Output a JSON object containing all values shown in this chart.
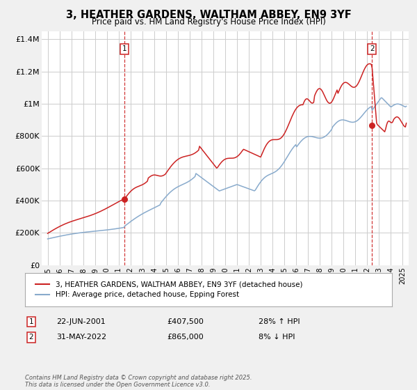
{
  "title": "3, HEATHER GARDENS, WALTHAM ABBEY, EN9 3YF",
  "subtitle": "Price paid vs. HM Land Registry's House Price Index (HPI)",
  "ylim": [
    0,
    1450000
  ],
  "yticks": [
    0,
    200000,
    400000,
    600000,
    800000,
    1000000,
    1200000,
    1400000
  ],
  "ytick_labels": [
    "£0",
    "£200K",
    "£400K",
    "£600K",
    "£800K",
    "£1M",
    "£1.2M",
    "£1.4M"
  ],
  "xlim_start": 1994.5,
  "xlim_end": 2025.5,
  "red_color": "#cc2222",
  "blue_color": "#88aacc",
  "marker1_x": 2001.47,
  "marker1_y": 407500,
  "marker2_x": 2022.41,
  "marker2_y": 865000,
  "sale1_date": "22-JUN-2001",
  "sale1_price": "£407,500",
  "sale1_hpi": "28% ↑ HPI",
  "sale2_date": "31-MAY-2022",
  "sale2_price": "£865,000",
  "sale2_hpi": "8% ↓ HPI",
  "legend1": "3, HEATHER GARDENS, WALTHAM ABBEY, EN9 3YF (detached house)",
  "legend2": "HPI: Average price, detached house, Epping Forest",
  "footer": "Contains HM Land Registry data © Crown copyright and database right 2025.\nThis data is licensed under the Open Government Licence v3.0.",
  "bg_color": "#f0f0f0",
  "plot_bg_color": "#ffffff",
  "grid_color": "#cccccc"
}
